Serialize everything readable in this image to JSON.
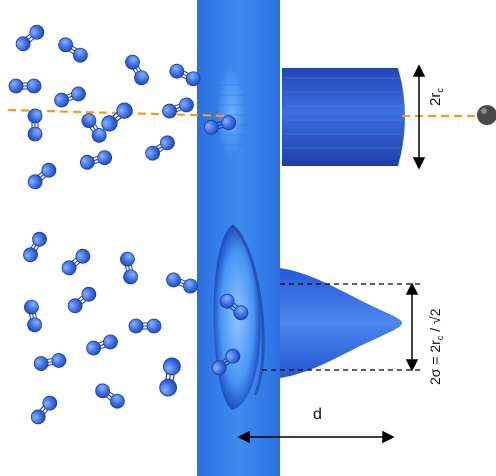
{
  "labels": {
    "top_width_main": "2r",
    "top_width_sub": "c",
    "gauss_width_main": "2σ = 2r",
    "gauss_width_sub": "c",
    "gauss_width_tail": " / √2",
    "distance": "d"
  },
  "colors": {
    "film": "#2f7ae6",
    "film_light": "#5aa0f5",
    "molecule": "#3a6ee8",
    "beam_line": "#f39a2a",
    "particle": "#444444"
  },
  "icons": [
    "diatomic-molecule-icon",
    "particle-icon"
  ]
}
